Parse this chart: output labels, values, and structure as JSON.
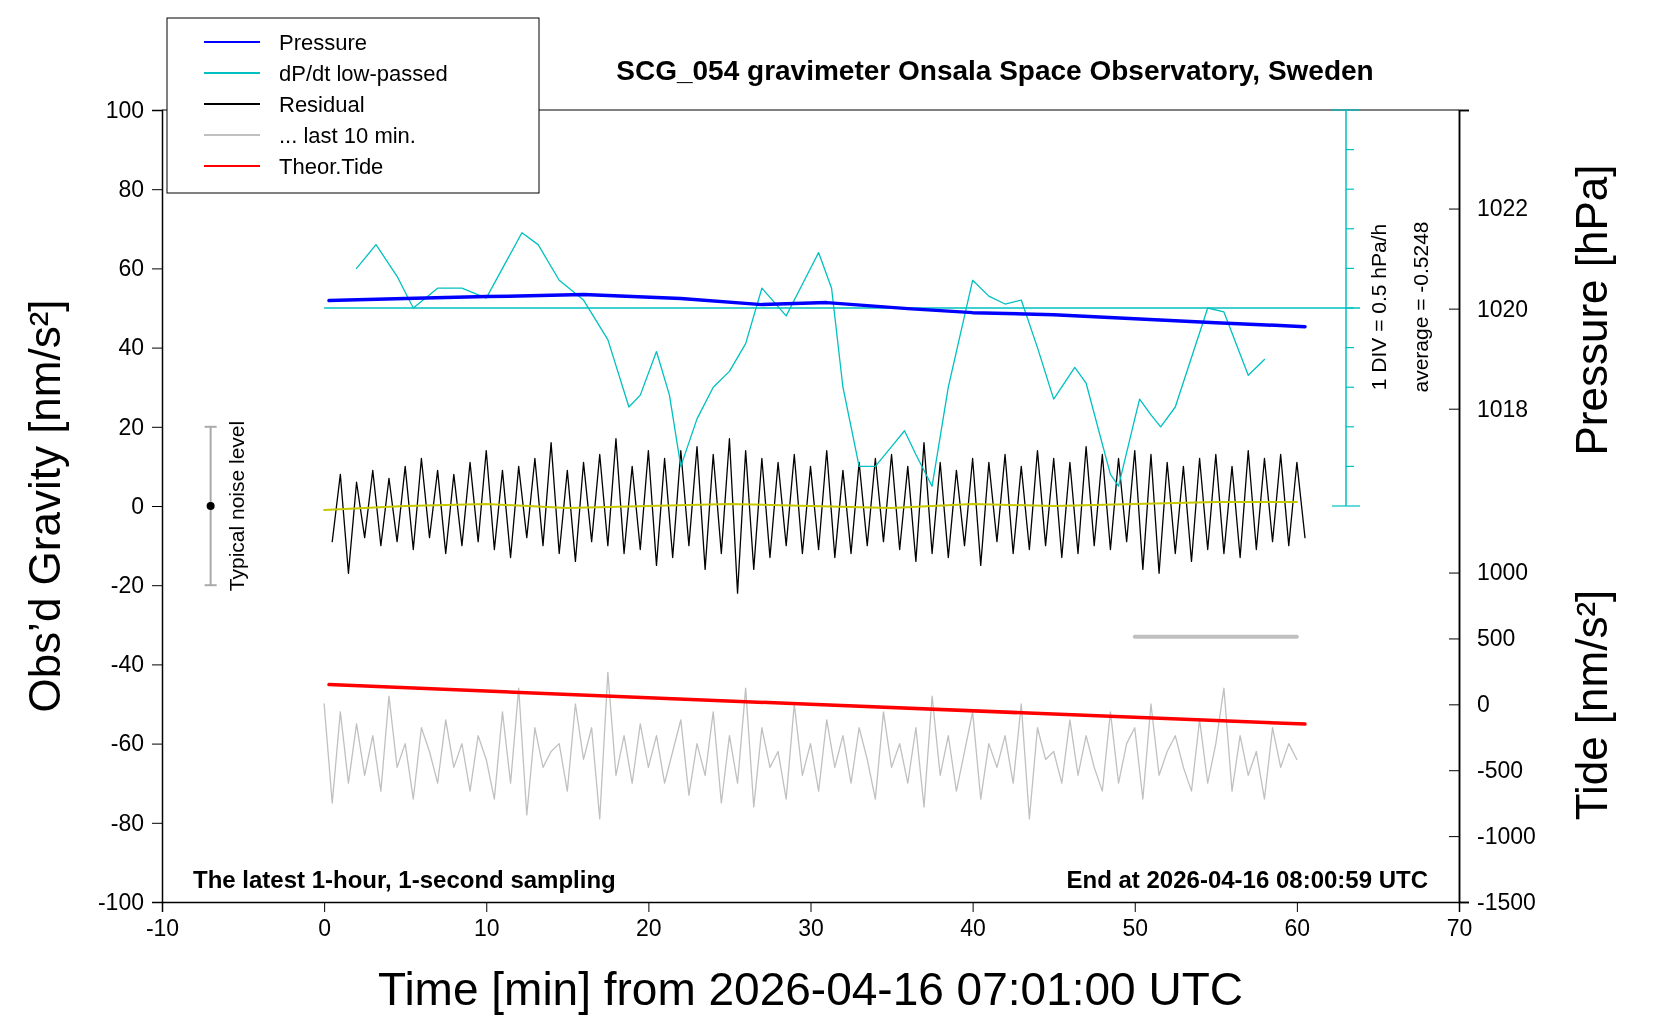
{
  "chart_data": {
    "type": "line",
    "title": "SCG_054 gravimeter Onsala Space Observatory, Sweden",
    "xlabel": "Time [min] from 2026-04-16 07:01:00 UTC",
    "ylabel": "Obs’d Gravity [nm/s²]",
    "y2label": "Pressure [hPa]",
    "y3label": "Tide [nm/s²]",
    "xlim": [
      -10,
      70
    ],
    "xticks": [
      -10,
      0,
      10,
      20,
      30,
      40,
      50,
      60,
      70
    ],
    "ylim": [
      -100,
      100
    ],
    "yticks": [
      -100,
      -80,
      -60,
      -40,
      -20,
      0,
      20,
      40,
      60,
      80,
      100
    ],
    "y2lim": [
      1008.14,
      1023.97
    ],
    "y2ticks": [
      1018,
      1020,
      1022
    ],
    "y3lim": [
      -1500,
      4510
    ],
    "y3ticks": [
      -1500,
      -1000,
      -500,
      0,
      500,
      1000
    ],
    "grid": false,
    "legend": "top left",
    "ref_lines": [
      {
        "axis": "y",
        "value": 50,
        "color": "#00c0c0"
      }
    ],
    "annotations": [
      "The latest 1-hour, 1-second sampling",
      "End at 2026-04-16 08:00:59 UTC",
      "Typical noise level",
      "1 DIV = 0.5 hPa/h",
      "average = -0.5248"
    ],
    "series": [
      {
        "name": "Pressure",
        "color": "#0000ff",
        "axis": "y2",
        "x": [
          0.3,
          5,
          10,
          16,
          22,
          27,
          31,
          36,
          40,
          45,
          50,
          55,
          60.5
        ],
        "values": [
          1020.16,
          1020.2,
          1020.24,
          1020.28,
          1020.2,
          1020.08,
          1020.12,
          1020.0,
          1019.92,
          1019.88,
          1019.8,
          1019.72,
          1019.64
        ]
      },
      {
        "name": "dP/dt low-passed",
        "color": "#00c0c0",
        "x": [
          2,
          3.2,
          4.5,
          5.5,
          7,
          8.5,
          10,
          11,
          12.2,
          13.2,
          14.5,
          16,
          17.5,
          18.8,
          19.5,
          20.5,
          21.3,
          22,
          23,
          24,
          25,
          26,
          27,
          28.5,
          29.5,
          30.5,
          31.3,
          32,
          33,
          34,
          35,
          35.8,
          36.5,
          37.5,
          38.5,
          40,
          41,
          42,
          43,
          44,
          45,
          46.3,
          47,
          48.5,
          49,
          50,
          50.3,
          51,
          51.6,
          52.5,
          54.5,
          55.5,
          57,
          58
        ],
        "values": [
          60,
          66,
          58,
          50,
          55,
          55,
          52.5,
          60,
          69,
          66,
          57,
          52,
          42,
          25,
          28,
          39,
          28,
          10,
          22,
          30,
          34,
          41,
          55,
          48,
          56,
          64,
          55,
          30,
          10,
          10,
          15,
          19,
          13,
          5,
          30,
          57,
          53,
          51,
          52,
          40,
          27,
          35,
          31,
          8,
          5,
          22,
          27,
          23,
          20,
          25,
          50,
          49,
          33,
          37
        ]
      },
      {
        "name": "Residual",
        "color": "#000000",
        "x": [
          0.5,
          1,
          1.5,
          2,
          2.5,
          3,
          3.5,
          4,
          4.5,
          5,
          5.5,
          6,
          6.5,
          7,
          7.5,
          8,
          8.5,
          9,
          9.5,
          10,
          10.5,
          11,
          11.5,
          12,
          12.5,
          13,
          13.5,
          14,
          14.5,
          15,
          15.5,
          16,
          16.5,
          17,
          17.5,
          18,
          18.5,
          19,
          19.5,
          20,
          20.5,
          21,
          21.5,
          22,
          22.5,
          23,
          23.5,
          24,
          24.5,
          25,
          25.5,
          26,
          26.5,
          27,
          27.5,
          28,
          28.5,
          29,
          29.5,
          30,
          30.5,
          31,
          31.5,
          32,
          32.5,
          33,
          33.5,
          34,
          34.5,
          35,
          35.5,
          36,
          36.5,
          37,
          37.5,
          38,
          38.5,
          39,
          39.5,
          40,
          40.5,
          41,
          41.5,
          42,
          42.5,
          43,
          43.5,
          44,
          44.5,
          45,
          45.5,
          46,
          46.5,
          47,
          47.5,
          48,
          48.5,
          49,
          49.5,
          50,
          50.5,
          51,
          51.5,
          52,
          52.5,
          53,
          53.5,
          54,
          54.5,
          55,
          55.5,
          56,
          56.5,
          57,
          57.5,
          58,
          58.5,
          59,
          59.5,
          60,
          60.5
        ],
        "values": [
          -9,
          8,
          -17,
          6,
          -8,
          9,
          -10,
          7,
          -9,
          10,
          -11,
          12,
          -8,
          9,
          -12,
          8,
          -10,
          11,
          -9,
          14,
          -11,
          9,
          -13,
          10,
          -8,
          12,
          -10,
          16,
          -12,
          9,
          -14,
          11,
          -9,
          13,
          -10,
          17,
          -12,
          10,
          -11,
          14,
          -15,
          12,
          -13,
          14,
          -10,
          15,
          -16,
          13,
          -12,
          17,
          -22,
          14,
          -16,
          12,
          -13,
          11,
          -10,
          13,
          -12,
          10,
          -11,
          14,
          -13,
          9,
          -12,
          11,
          -10,
          12,
          -9,
          13,
          -11,
          10,
          -14,
          16,
          -12,
          11,
          -13,
          9,
          -10,
          12,
          -15,
          11,
          -9,
          13,
          -12,
          10,
          -11,
          14,
          -10,
          12,
          -13,
          11,
          -12,
          15,
          -10,
          13,
          -11,
          12,
          -9,
          14,
          -16,
          13,
          -17,
          11,
          -12,
          10,
          -14,
          12,
          -11,
          13,
          -12,
          10,
          -13,
          14,
          -11,
          12,
          -9,
          13,
          -10,
          11,
          -8
        ]
      },
      {
        "name": "... last 10 min.",
        "color": "#c0c0c0",
        "x": [
          0,
          0.5,
          1,
          1.5,
          2,
          2.5,
          3,
          3.5,
          4,
          4.5,
          5,
          5.5,
          6,
          6.5,
          7,
          7.5,
          8,
          8.5,
          9,
          9.5,
          10,
          10.5,
          11,
          11.5,
          12,
          12.5,
          13,
          13.5,
          14,
          14.5,
          15,
          15.5,
          16,
          16.5,
          17,
          17.5,
          18,
          18.5,
          19,
          19.5,
          20,
          20.5,
          21,
          21.5,
          22,
          22.5,
          23,
          23.5,
          24,
          24.5,
          25,
          25.5,
          26,
          26.5,
          27,
          27.5,
          28,
          28.5,
          29,
          29.5,
          30,
          30.5,
          31,
          31.5,
          32,
          32.5,
          33,
          33.5,
          34,
          34.5,
          35,
          35.5,
          36,
          36.5,
          37,
          37.5,
          38,
          38.5,
          39,
          39.5,
          40,
          40.5,
          41,
          41.5,
          42,
          42.5,
          43,
          43.5,
          44,
          44.5,
          45,
          45.5,
          46,
          46.5,
          47,
          47.5,
          48,
          48.5,
          49,
          49.5,
          50,
          50.5,
          51,
          51.5,
          52,
          52.5,
          53,
          53.5,
          54,
          54.5,
          55,
          55.5,
          56,
          56.5,
          57,
          57.5,
          58,
          58.5,
          59,
          59.5,
          60
        ],
        "values": [
          -50,
          -75,
          -52,
          -70,
          -55,
          -68,
          -58,
          -72,
          -48,
          -66,
          -60,
          -74,
          -56,
          -62,
          -70,
          -54,
          -66,
          -60,
          -72,
          -58,
          -64,
          -74,
          -52,
          -70,
          -46,
          -78,
          -56,
          -66,
          -62,
          -60,
          -72,
          -50,
          -64,
          -56,
          -79,
          -42,
          -68,
          -58,
          -70,
          -55,
          -66,
          -58,
          -70,
          -62,
          -54,
          -73,
          -60,
          -68,
          -52,
          -75,
          -58,
          -70,
          -46,
          -76,
          -56,
          -66,
          -62,
          -74,
          -50,
          -68,
          -60,
          -72,
          -54,
          -66,
          -58,
          -70,
          -56,
          -64,
          -74,
          -52,
          -66,
          -60,
          -70,
          -56,
          -76,
          -48,
          -68,
          -58,
          -72,
          -62,
          -52,
          -74,
          -60,
          -66,
          -58,
          -70,
          -50,
          -79,
          -56,
          -64,
          -62,
          -70,
          -54,
          -68,
          -58,
          -66,
          -72,
          -52,
          -70,
          -60,
          -56,
          -74,
          -50,
          -68,
          -62,
          -58,
          -66,
          -72,
          -54,
          -70,
          -60,
          -46,
          -72,
          -58,
          -68,
          -62,
          -74,
          -56,
          -66,
          -60,
          -64
        ]
      },
      {
        "name": "Theor.Tide",
        "color": "#ff0000",
        "axis": "y3",
        "x": [
          0.3,
          30,
          60.5
        ],
        "values": [
          150,
          0,
          -150
        ]
      },
      {
        "color": "#c8c800",
        "x": [
          0,
          5,
          10,
          15,
          20,
          25,
          30,
          35,
          40,
          45,
          50,
          55,
          60
        ],
        "values": [
          -1,
          0,
          0.5,
          -0.5,
          0,
          0.5,
          0,
          -0.5,
          0.5,
          0,
          0.5,
          1,
          1
        ]
      },
      {
        "type": "scatter",
        "color": "#000000",
        "x": [
          -7
        ],
        "values": [
          0
        ],
        "errors": [
          20
        ]
      },
      {
        "color": "#c0c0c0",
        "x": [
          50,
          60
        ],
        "values": [
          -33,
          -33
        ]
      }
    ]
  }
}
